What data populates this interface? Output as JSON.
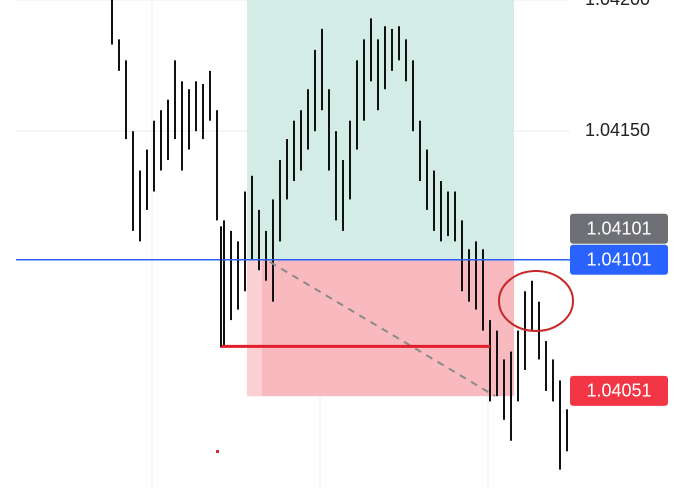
{
  "chart_data": {
    "type": "range",
    "color": "#111111",
    "ylim": [
      1.04014,
      1.042
    ],
    "yticks": [
      {
        "value": 1.042,
        "label": "1.04200"
      },
      {
        "value": 1.0415,
        "label": "1.04150"
      }
    ],
    "grid": true,
    "high": [
      1.042,
      1.04185,
      1.04177,
      1.0415,
      1.04135,
      1.04143,
      1.04154,
      1.04158,
      1.04162,
      1.04177,
      1.04169,
      1.04166,
      1.04169,
      1.04168,
      1.04173,
      1.04158,
      1.04116,
      1.04112,
      1.04108,
      1.04127,
      1.04133,
      1.0412,
      1.04112,
      1.04124,
      1.04139,
      1.04147,
      1.04154,
      1.04158,
      1.04166,
      1.04181,
      1.04189,
      1.04166,
      1.0415,
      1.04139,
      1.04154,
      1.04177,
      1.04185,
      1.04193,
      1.04185,
      1.0419,
      1.04189,
      1.0419,
      1.04185,
      1.04177,
      1.04154,
      1.04143,
      1.04135,
      1.04131,
      1.04127,
      1.04127,
      1.04116,
      1.04105,
      1.04108,
      1.04105,
      1.04078,
      1.04074,
      1.04063,
      1.04066,
      1.04074,
      1.04089,
      1.04093,
      1.04085,
      1.0407,
      1.04063,
      1.04055,
      1.04044
    ],
    "low": [
      1.04183,
      1.04173,
      1.04147,
      1.04112,
      1.04108,
      1.0412,
      1.04127,
      1.04135,
      1.04139,
      1.04147,
      1.04135,
      1.04143,
      1.0415,
      1.04147,
      1.04154,
      1.04116,
      1.04068,
      1.04078,
      1.04082,
      1.04089,
      1.04101,
      1.04097,
      1.04093,
      1.04085,
      1.04108,
      1.04124,
      1.04131,
      1.04135,
      1.04143,
      1.0415,
      1.04158,
      1.04135,
      1.04116,
      1.04112,
      1.04124,
      1.04143,
      1.04154,
      1.04169,
      1.04158,
      1.04166,
      1.04173,
      1.04177,
      1.04169,
      1.0415,
      1.04131,
      1.0412,
      1.04112,
      1.04108,
      1.0411,
      1.04108,
      1.04089,
      1.04085,
      1.04082,
      1.04074,
      1.04047,
      1.04049,
      1.0404,
      1.04032,
      1.04047,
      1.04059,
      1.04074,
      1.04063,
      1.04051,
      1.04047,
      1.04021,
      1.04028
    ],
    "entry": 1.04101,
    "stop": 1.04049,
    "level_line": 1.04068,
    "price_tags": [
      {
        "value": 1.04101,
        "label": "1.04101",
        "color": "#6e7076"
      },
      {
        "value": 1.04101,
        "label": "1.04101",
        "color": "#2962ff"
      },
      {
        "value": 1.04051,
        "label": "1.04051",
        "color": "#f23645"
      }
    ]
  }
}
